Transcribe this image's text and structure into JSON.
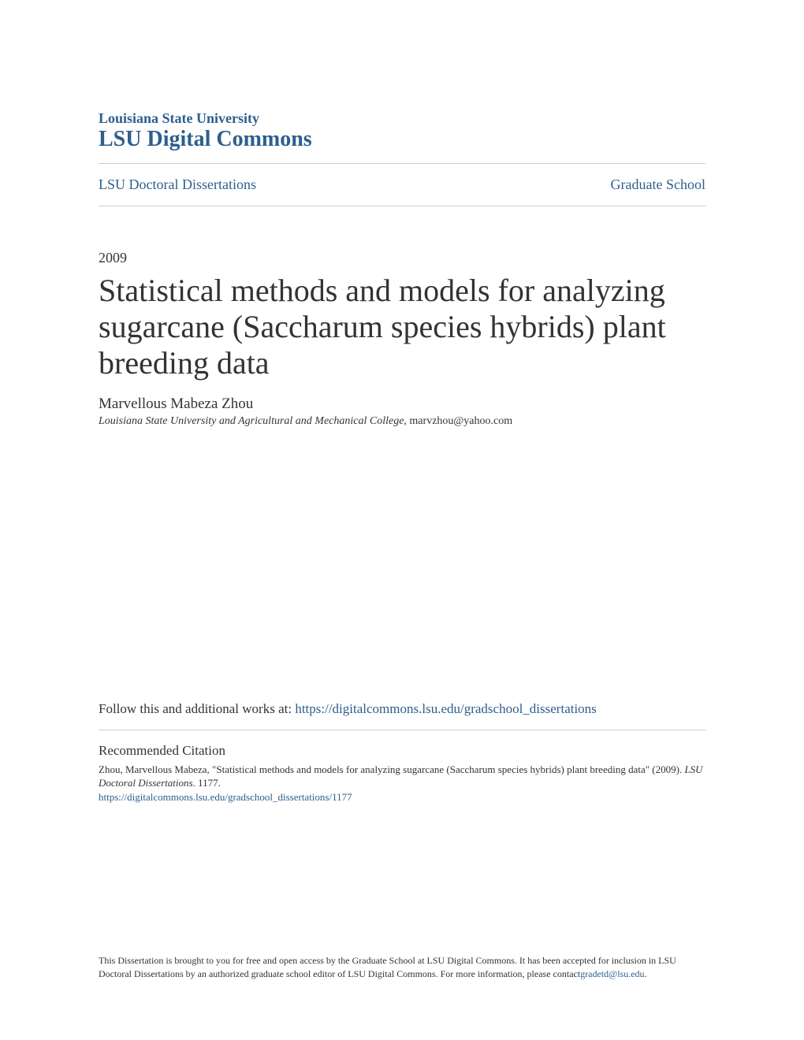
{
  "header": {
    "institution": "Louisiana State University",
    "repository": "LSU Digital Commons"
  },
  "breadcrumb": {
    "left": "LSU Doctoral Dissertations",
    "right": "Graduate School"
  },
  "document": {
    "year": "2009",
    "title": "Statistical methods and models for analyzing sugarcane (Saccharum species hybrids) plant breeding data",
    "author": "Marvellous Mabeza Zhou",
    "affiliation_institution": "Louisiana State University and Agricultural and Mechanical College",
    "affiliation_email": ", marvzhou@yahoo.com"
  },
  "follow": {
    "prefix": "Follow this and additional works at: ",
    "link": "https://digitalcommons.lsu.edu/gradschool_dissertations"
  },
  "citation": {
    "heading": "Recommended Citation",
    "text_part1": "Zhou, Marvellous Mabeza, \"Statistical methods and models for analyzing sugarcane (Saccharum species hybrids) plant breeding data\" (2009). ",
    "text_italic": "LSU Doctoral Dissertations",
    "text_part2": ". 1177.",
    "link": "https://digitalcommons.lsu.edu/gradschool_dissertations/1177"
  },
  "footer": {
    "text": "This Dissertation is brought to you for free and open access by the Graduate School at LSU Digital Commons. It has been accepted for inclusion in LSU Doctoral Dissertations by an authorized graduate school editor of LSU Digital Commons. For more information, please contact",
    "link": "gradetd@lsu.edu",
    "period": "."
  },
  "colors": {
    "link_color": "#2c5f8d",
    "text_color": "#333333",
    "hr_color": "#cccccc",
    "background": "#ffffff"
  }
}
